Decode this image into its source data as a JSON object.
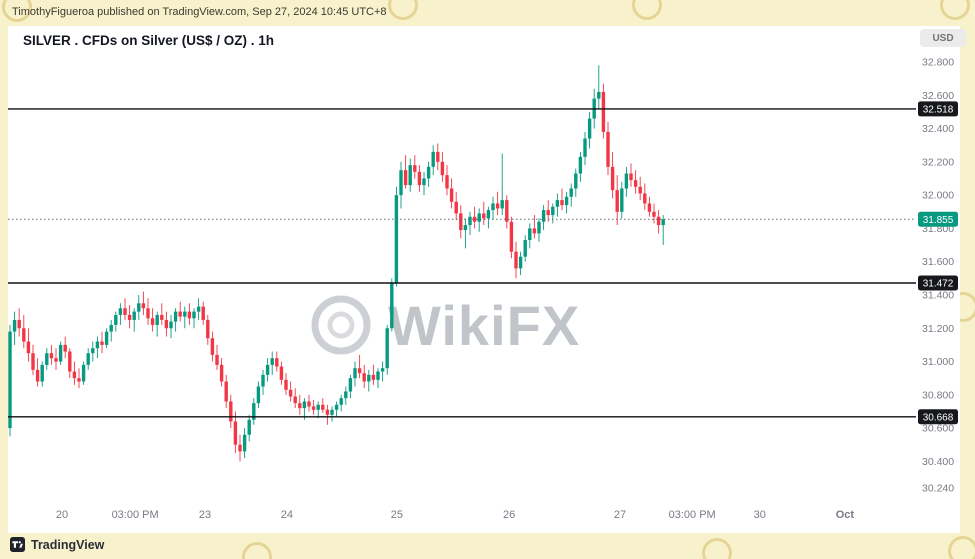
{
  "attribution": "TimothyFigueroa published on TradingView.com, Sep 27, 2024 10:45 UTC+8",
  "title": "SILVER . CFDs on Silver (US$ / OZ) . 1h",
  "currency_badge": "USD",
  "watermark": "WikiFX",
  "footer_logo": "TradingView",
  "colors": {
    "up": "#089981",
    "down": "#f23645",
    "axis_text": "#787b86",
    "level_line": "#111111",
    "level_badge": "#17181b",
    "current_badge": "#089981",
    "frame": "#f8f2cc",
    "chart_background": "#ffffff"
  },
  "chart_data": {
    "type": "candlestick",
    "title": "SILVER . CFDs on Silver (US$ / OZ) . 1h",
    "symbol": "SILVER",
    "timeframe": "1h",
    "grid": false,
    "y_axis": {
      "range": [
        30.24,
        32.8
      ],
      "ticks": [
        {
          "label": "32.800",
          "price": 32.8
        },
        {
          "label": "32.600",
          "price": 32.6
        },
        {
          "label": "32.400",
          "price": 32.4
        },
        {
          "label": "32.200",
          "price": 32.2
        },
        {
          "label": "32.000",
          "price": 32.0
        },
        {
          "label": "31.800",
          "price": 31.8
        },
        {
          "label": "31.600",
          "price": 31.6
        },
        {
          "label": "31.400",
          "price": 31.4
        },
        {
          "label": "31.200",
          "price": 31.2
        },
        {
          "label": "31.000",
          "price": 31.0
        },
        {
          "label": "30.800",
          "price": 30.8
        },
        {
          "label": "30.600",
          "price": 30.6
        },
        {
          "label": "30.400",
          "price": 30.4
        },
        {
          "label": "30.240",
          "price": 30.24
        }
      ]
    },
    "x_axis": {
      "labels": [
        {
          "text": "20",
          "i": 11.3
        },
        {
          "text": "03:00 PM",
          "i": 27.2
        },
        {
          "text": "23",
          "i": 42.4
        },
        {
          "text": "24",
          "i": 60.2
        },
        {
          "text": "25",
          "i": 84.1
        },
        {
          "text": "26",
          "i": 108.5
        },
        {
          "text": "27",
          "i": 132.6
        },
        {
          "text": "03:00 PM",
          "i": 148.3
        },
        {
          "text": "30",
          "i": 163.0
        },
        {
          "text": "Oct",
          "i": 181.5,
          "bold": true
        }
      ]
    },
    "levels": [
      {
        "price": 32.518,
        "label": "32.518"
      },
      {
        "price": 31.472,
        "label": "31.472"
      },
      {
        "price": 30.668,
        "label": "30.668"
      }
    ],
    "current_price": {
      "price": 31.855,
      "label": "31.855"
    },
    "candles": [
      [
        30.6,
        31.22,
        30.55,
        31.18
      ],
      [
        31.18,
        31.3,
        31.1,
        31.25
      ],
      [
        31.25,
        31.32,
        31.15,
        31.2
      ],
      [
        31.2,
        31.28,
        31.08,
        31.12
      ],
      [
        31.12,
        31.2,
        31.0,
        31.05
      ],
      [
        31.05,
        31.1,
        30.92,
        30.95
      ],
      [
        30.95,
        31.02,
        30.85,
        30.88
      ],
      [
        30.88,
        31.0,
        30.85,
        30.98
      ],
      [
        30.98,
        31.08,
        30.95,
        31.05
      ],
      [
        31.05,
        31.1,
        30.98,
        31.02
      ],
      [
        31.02,
        31.08,
        30.95,
        31.0
      ],
      [
        31.0,
        31.12,
        30.98,
        31.1
      ],
      [
        31.1,
        31.15,
        31.02,
        31.06
      ],
      [
        31.06,
        31.08,
        30.9,
        30.94
      ],
      [
        30.94,
        31.0,
        30.86,
        30.9
      ],
      [
        30.9,
        30.96,
        30.84,
        30.88
      ],
      [
        30.88,
        31.0,
        30.86,
        30.98
      ],
      [
        30.98,
        31.08,
        30.95,
        31.05
      ],
      [
        31.05,
        31.12,
        31.0,
        31.08
      ],
      [
        31.08,
        31.15,
        31.02,
        31.12
      ],
      [
        31.12,
        31.18,
        31.05,
        31.1
      ],
      [
        31.1,
        31.2,
        31.08,
        31.18
      ],
      [
        31.18,
        31.25,
        31.12,
        31.22
      ],
      [
        31.22,
        31.3,
        31.18,
        31.28
      ],
      [
        31.28,
        31.35,
        31.22,
        31.32
      ],
      [
        31.32,
        31.38,
        31.25,
        31.28
      ],
      [
        31.28,
        31.34,
        31.2,
        31.25
      ],
      [
        31.25,
        31.32,
        31.18,
        31.3
      ],
      [
        31.3,
        31.4,
        31.25,
        31.35
      ],
      [
        31.35,
        31.42,
        31.28,
        31.32
      ],
      [
        31.32,
        31.38,
        31.22,
        31.26
      ],
      [
        31.26,
        31.32,
        31.18,
        31.22
      ],
      [
        31.22,
        31.3,
        31.15,
        31.28
      ],
      [
        31.28,
        31.35,
        31.22,
        31.25
      ],
      [
        31.25,
        31.3,
        31.15,
        31.2
      ],
      [
        31.2,
        31.28,
        31.14,
        31.24
      ],
      [
        31.24,
        31.32,
        31.18,
        31.3
      ],
      [
        31.3,
        31.36,
        31.24,
        31.27
      ],
      [
        31.27,
        31.33,
        31.2,
        31.3
      ],
      [
        31.3,
        31.35,
        31.22,
        31.26
      ],
      [
        31.26,
        31.32,
        31.2,
        31.3
      ],
      [
        31.3,
        31.38,
        31.25,
        31.33
      ],
      [
        31.33,
        31.36,
        31.22,
        31.25
      ],
      [
        31.25,
        31.28,
        31.1,
        31.14
      ],
      [
        31.14,
        31.18,
        31.0,
        31.04
      ],
      [
        31.04,
        31.1,
        30.95,
        30.98
      ],
      [
        30.98,
        31.02,
        30.85,
        30.88
      ],
      [
        30.88,
        30.92,
        30.72,
        30.76
      ],
      [
        30.76,
        30.8,
        30.6,
        30.64
      ],
      [
        30.64,
        30.7,
        30.45,
        30.5
      ],
      [
        30.5,
        30.56,
        30.4,
        30.46
      ],
      [
        30.46,
        30.6,
        30.42,
        30.56
      ],
      [
        30.56,
        30.68,
        30.52,
        30.65
      ],
      [
        30.65,
        30.78,
        30.62,
        30.75
      ],
      [
        30.75,
        30.88,
        30.72,
        30.85
      ],
      [
        30.85,
        30.95,
        30.8,
        30.92
      ],
      [
        30.92,
        31.02,
        30.88,
        30.98
      ],
      [
        30.98,
        31.06,
        30.92,
        31.02
      ],
      [
        31.02,
        31.06,
        30.94,
        30.97
      ],
      [
        30.97,
        31.0,
        30.86,
        30.89
      ],
      [
        30.89,
        30.93,
        30.8,
        30.83
      ],
      [
        30.83,
        30.88,
        30.76,
        30.79
      ],
      [
        30.79,
        30.84,
        30.72,
        30.75
      ],
      [
        30.75,
        30.8,
        30.68,
        30.72
      ],
      [
        30.72,
        30.78,
        30.65,
        30.76
      ],
      [
        30.76,
        30.8,
        30.7,
        30.73
      ],
      [
        30.73,
        30.77,
        30.68,
        30.71
      ],
      [
        30.71,
        30.76,
        30.66,
        30.74
      ],
      [
        30.74,
        30.78,
        30.69,
        30.71
      ],
      [
        30.71,
        30.74,
        30.62,
        30.68
      ],
      [
        30.68,
        30.73,
        30.64,
        30.71
      ],
      [
        30.71,
        30.76,
        30.67,
        30.74
      ],
      [
        30.74,
        30.8,
        30.7,
        30.78
      ],
      [
        30.78,
        30.85,
        30.74,
        30.82
      ],
      [
        30.82,
        30.92,
        30.78,
        30.9
      ],
      [
        30.9,
        31.0,
        30.85,
        30.96
      ],
      [
        30.96,
        31.04,
        30.9,
        30.93
      ],
      [
        30.93,
        30.98,
        30.84,
        30.88
      ],
      [
        30.88,
        30.95,
        30.82,
        30.92
      ],
      [
        30.92,
        30.98,
        30.86,
        30.89
      ],
      [
        30.89,
        30.96,
        30.84,
        30.94
      ],
      [
        30.94,
        31.0,
        30.88,
        30.96
      ],
      [
        30.96,
        31.22,
        30.92,
        31.2
      ],
      [
        31.2,
        31.5,
        31.18,
        31.47
      ],
      [
        31.47,
        32.05,
        31.45,
        32.0
      ],
      [
        32.0,
        32.2,
        31.92,
        32.15
      ],
      [
        32.15,
        32.24,
        32.04,
        32.06
      ],
      [
        32.06,
        32.22,
        32.02,
        32.18
      ],
      [
        32.18,
        32.24,
        32.1,
        32.14
      ],
      [
        32.14,
        32.18,
        32.02,
        32.06
      ],
      [
        32.06,
        32.14,
        32.0,
        32.1
      ],
      [
        32.1,
        32.2,
        32.05,
        32.17
      ],
      [
        32.17,
        32.3,
        32.12,
        32.26
      ],
      [
        32.26,
        32.31,
        32.15,
        32.2
      ],
      [
        32.2,
        32.26,
        32.08,
        32.12
      ],
      [
        32.12,
        32.18,
        32.0,
        32.04
      ],
      [
        32.04,
        32.1,
        31.92,
        31.96
      ],
      [
        31.96,
        32.02,
        31.85,
        31.89
      ],
      [
        31.89,
        31.94,
        31.74,
        31.79
      ],
      [
        31.79,
        31.86,
        31.68,
        31.82
      ],
      [
        31.82,
        31.9,
        31.76,
        31.87
      ],
      [
        31.87,
        31.93,
        31.8,
        31.84
      ],
      [
        31.84,
        31.92,
        31.78,
        31.89
      ],
      [
        31.89,
        31.96,
        31.82,
        31.86
      ],
      [
        31.86,
        31.93,
        31.8,
        31.91
      ],
      [
        31.91,
        31.99,
        31.85,
        31.95
      ],
      [
        31.95,
        32.02,
        31.88,
        31.92
      ],
      [
        31.92,
        32.25,
        31.88,
        31.97
      ],
      [
        31.97,
        32.0,
        31.8,
        31.84
      ],
      [
        31.84,
        31.87,
        31.62,
        31.66
      ],
      [
        31.66,
        31.72,
        31.5,
        31.56
      ],
      [
        31.56,
        31.66,
        31.52,
        31.63
      ],
      [
        31.63,
        31.76,
        31.6,
        31.73
      ],
      [
        31.73,
        31.83,
        31.68,
        31.8
      ],
      [
        31.8,
        31.88,
        31.74,
        31.77
      ],
      [
        31.77,
        31.86,
        31.72,
        31.84
      ],
      [
        31.84,
        31.94,
        31.79,
        31.91
      ],
      [
        31.91,
        31.97,
        31.84,
        31.88
      ],
      [
        31.88,
        31.95,
        31.83,
        31.93
      ],
      [
        31.93,
        32.01,
        31.87,
        31.97
      ],
      [
        31.97,
        32.04,
        31.91,
        31.94
      ],
      [
        31.94,
        32.02,
        31.89,
        31.99
      ],
      [
        31.99,
        32.07,
        31.93,
        32.04
      ],
      [
        32.04,
        32.16,
        31.99,
        32.13
      ],
      [
        32.13,
        32.26,
        32.08,
        32.23
      ],
      [
        32.23,
        32.38,
        32.18,
        32.34
      ],
      [
        32.34,
        32.5,
        32.28,
        32.46
      ],
      [
        32.46,
        32.64,
        32.4,
        32.58
      ],
      [
        32.58,
        32.78,
        32.52,
        32.62
      ],
      [
        32.62,
        32.67,
        32.34,
        32.38
      ],
      [
        32.38,
        32.44,
        32.12,
        32.17
      ],
      [
        32.17,
        32.26,
        31.98,
        32.03
      ],
      [
        32.03,
        32.12,
        31.82,
        31.9
      ],
      [
        31.9,
        32.08,
        31.86,
        32.04
      ],
      [
        32.04,
        32.17,
        31.99,
        32.13
      ],
      [
        32.13,
        32.19,
        32.05,
        32.09
      ],
      [
        32.09,
        32.15,
        32.01,
        32.05
      ],
      [
        32.05,
        32.11,
        31.97,
        32.01
      ],
      [
        32.01,
        32.07,
        31.91,
        31.95
      ],
      [
        31.95,
        31.99,
        31.87,
        31.9
      ],
      [
        31.9,
        31.95,
        31.83,
        31.87
      ],
      [
        31.87,
        31.91,
        31.77,
        31.82
      ],
      [
        31.82,
        31.88,
        31.7,
        31.855
      ]
    ]
  }
}
